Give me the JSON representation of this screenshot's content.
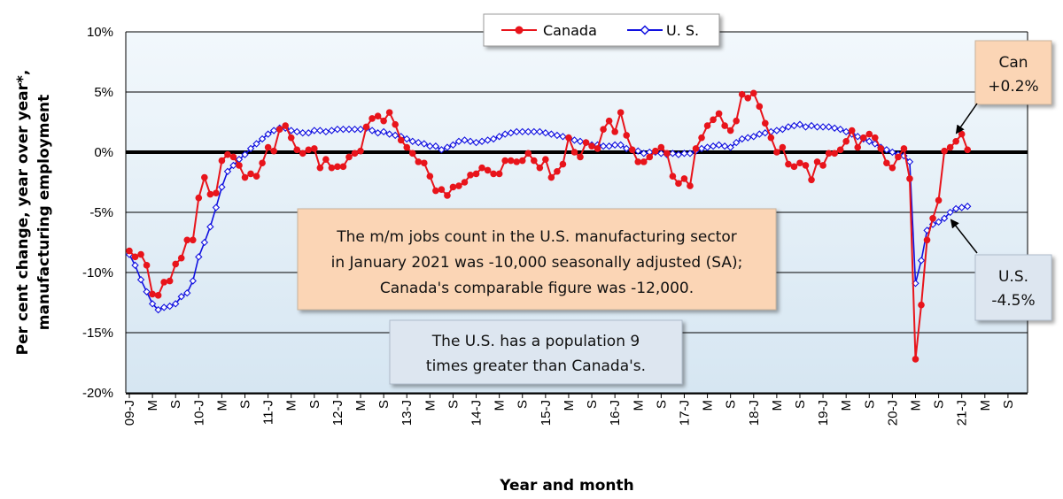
{
  "chart_data": {
    "type": "line",
    "ylabel_lines": [
      "Per cent change, year over year*,",
      "manufacturing employment"
    ],
    "xlabel": "Year and month",
    "ylim": [
      -20,
      10
    ],
    "yticks": [
      "10%",
      "5%",
      "0%",
      "-5%",
      "-10%",
      "-15%",
      "-20%"
    ],
    "ytick_values": [
      10,
      5,
      0,
      -5,
      -10,
      -15,
      -20
    ],
    "grid": true,
    "legend": {
      "placement": "top-center",
      "entries": [
        "Canada",
        "U. S."
      ]
    },
    "x_tick_labels": [
      "09-J",
      "M",
      "S",
      "10-J",
      "M",
      "S",
      "11-J",
      "M",
      "S",
      "12-J",
      "M",
      "S",
      "13-J",
      "M",
      "S",
      "14-J",
      "M",
      "S",
      "15-J",
      "M",
      "S",
      "16-J",
      "M",
      "S",
      "17-J",
      "M",
      "S",
      "18-J",
      "M",
      "S",
      "19-J",
      "M",
      "S",
      "20-J",
      "M",
      "S",
      "21-J",
      "M",
      "S"
    ],
    "x_start": "2009-01",
    "colors": {
      "canada": "#e8141b",
      "us": "#1010e0",
      "plot_bg_top": "#f2f8fc",
      "plot_bg_bottom": "#d6e6f2",
      "zero_line": "#000000"
    },
    "series": [
      {
        "name": "Canada",
        "values": [
          -8.2,
          -8.7,
          -8.5,
          -9.4,
          -11.8,
          -11.9,
          -10.8,
          -10.7,
          -9.3,
          -8.8,
          -7.3,
          -7.3,
          -3.8,
          -2.1,
          -3.5,
          -3.4,
          -0.7,
          -0.2,
          -0.4,
          -1.1,
          -2.1,
          -1.8,
          -2.0,
          -0.9,
          0.4,
          0.1,
          1.9,
          2.2,
          1.2,
          0.2,
          -0.1,
          0.2,
          0.3,
          -1.3,
          -0.6,
          -1.3,
          -1.2,
          -1.2,
          -0.4,
          -0.1,
          0.1,
          2.1,
          2.8,
          3.0,
          2.6,
          3.3,
          2.3,
          1.0,
          0.4,
          -0.1,
          -0.8,
          -0.9,
          -2.0,
          -3.2,
          -3.1,
          -3.6,
          -2.9,
          -2.8,
          -2.5,
          -1.9,
          -1.8,
          -1.3,
          -1.5,
          -1.8,
          -1.8,
          -0.7,
          -0.7,
          -0.8,
          -0.7,
          -0.1,
          -0.7,
          -1.3,
          -0.6,
          -2.1,
          -1.6,
          -1.0,
          1.2,
          0.0,
          -0.4,
          0.8,
          0.5,
          0.3,
          1.9,
          2.6,
          1.7,
          3.3,
          1.4,
          0.2,
          -0.8,
          -0.8,
          -0.4,
          0.1,
          0.4,
          -0.1,
          -2.0,
          -2.6,
          -2.2,
          -2.8,
          0.3,
          1.2,
          2.2,
          2.7,
          3.2,
          2.2,
          1.8,
          2.6,
          4.8,
          4.5,
          4.9,
          3.8,
          2.4,
          1.2,
          0.0,
          0.4,
          -1.0,
          -1.2,
          -0.9,
          -1.1,
          -2.3,
          -0.8,
          -1.1,
          -0.1,
          -0.1,
          0.2,
          0.9,
          1.8,
          0.4,
          1.2,
          1.5,
          1.2,
          0.3,
          -0.9,
          -1.3,
          -0.4,
          0.3,
          -2.2,
          -17.2,
          -12.7,
          -7.3,
          -5.5,
          -4.0,
          0.1,
          0.4,
          0.9,
          1.5,
          0.2
        ]
      },
      {
        "name": "U. S.",
        "values": [
          -8.5,
          -9.4,
          -10.6,
          -11.6,
          -12.6,
          -13.1,
          -12.9,
          -12.8,
          -12.6,
          -12.0,
          -11.7,
          -10.7,
          -8.7,
          -7.5,
          -6.2,
          -4.6,
          -2.9,
          -1.6,
          -1.1,
          -0.6,
          -0.2,
          0.3,
          0.7,
          1.1,
          1.5,
          1.8,
          2.0,
          2.0,
          1.8,
          1.7,
          1.6,
          1.6,
          1.8,
          1.8,
          1.7,
          1.8,
          1.9,
          1.9,
          1.9,
          1.9,
          1.9,
          2.0,
          1.8,
          1.6,
          1.7,
          1.5,
          1.4,
          1.3,
          1.1,
          0.9,
          0.8,
          0.7,
          0.5,
          0.5,
          0.2,
          0.4,
          0.6,
          0.9,
          1.0,
          0.9,
          0.8,
          0.9,
          1.0,
          1.1,
          1.3,
          1.5,
          1.6,
          1.7,
          1.7,
          1.7,
          1.7,
          1.7,
          1.6,
          1.5,
          1.4,
          1.3,
          1.2,
          1.0,
          0.9,
          0.8,
          0.6,
          0.6,
          0.5,
          0.5,
          0.6,
          0.6,
          0.3,
          0.2,
          0.1,
          -0.1,
          0.0,
          0.0,
          -0.1,
          -0.2,
          -0.1,
          -0.2,
          -0.1,
          -0.1,
          0.1,
          0.3,
          0.4,
          0.5,
          0.6,
          0.5,
          0.4,
          0.8,
          1.1,
          1.2,
          1.3,
          1.5,
          1.6,
          1.7,
          1.8,
          1.9,
          2.1,
          2.2,
          2.3,
          2.1,
          2.2,
          2.1,
          2.1,
          2.1,
          2.0,
          1.9,
          1.7,
          1.5,
          1.3,
          1.1,
          0.9,
          0.7,
          0.4,
          0.2,
          0.0,
          -0.2,
          -0.3,
          -0.8,
          -10.9,
          -9.0,
          -6.5,
          -6.0,
          -5.8,
          -5.5,
          -5.0,
          -4.7,
          -4.6,
          -4.5
        ]
      }
    ],
    "annotations": {
      "can_callout": [
        "Can",
        "+0.2%"
      ],
      "us_callout": [
        "U.S.",
        "-4.5%"
      ],
      "note1": [
        "The m/m jobs count in the U.S. manufacturing sector",
        "in January 2021 was -10,000 seasonally adjusted (SA);",
        "Canada's comparable figure was -12,000."
      ],
      "note2": [
        "The U.S. has a population 9",
        "times greater than Canada's."
      ]
    }
  }
}
